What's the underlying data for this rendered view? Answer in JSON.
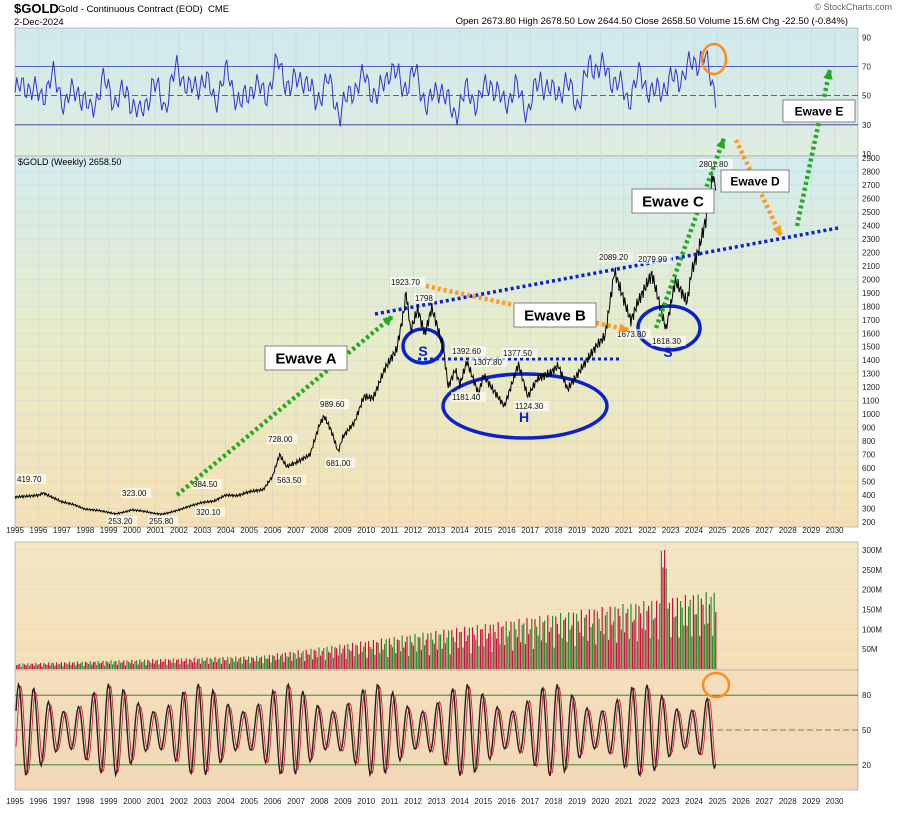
{
  "header": {
    "symbol": "$GOLD",
    "name": "Gold - Continuous Contract (EOD)",
    "exchange": "CME",
    "date": "2-Dec-2024",
    "quote": "Open 2673.80  High 2678.50  Low 2644.50  Close 2658.50  Volume 15.6M  Chg -22.50 (-0.84%)",
    "brand": "© StockCharts.com"
  },
  "colors": {
    "price_line": "#000000",
    "rsi_line": "#3333cc",
    "volume_up": "#2e8b2e",
    "volume_down": "#cc1144",
    "trend_blue": "#0a22cc",
    "arrow_green": "#22aa22",
    "arrow_orange": "#ff9922",
    "highlight_ring": "#ff8c1a"
  },
  "chart_data": [
    {
      "type": "line",
      "panel": "rsi",
      "ylim": [
        10,
        95
      ],
      "yticks": [
        "90",
        "70",
        "50",
        "30",
        "10"
      ],
      "reference_lines": [
        70,
        50,
        30
      ],
      "series": [
        {
          "values": [
            52,
            58,
            48,
            63,
            45,
            55,
            38,
            60,
            47,
            52,
            35,
            58,
            44,
            70,
            52,
            62,
            48,
            66,
            42,
            58,
            50,
            72,
            55,
            64,
            46,
            60,
            38,
            55,
            62,
            48,
            70,
            56,
            65,
            42,
            58,
            36,
            52,
            46,
            60,
            44,
            55,
            40,
            62,
            50,
            58,
            45,
            72,
            68,
            60,
            48,
            64,
            50,
            58,
            62,
            70,
            78,
            52
          ]
        }
      ]
    },
    {
      "type": "line",
      "panel": "price",
      "title": "$GOLD (Weekly) 2658.50",
      "ylim": [
        200,
        2900
      ],
      "yticks": [
        "2900",
        "2800",
        "2700",
        "2600",
        "2500",
        "2400",
        "2300",
        "2200",
        "2100",
        "2000",
        "1900",
        "1800",
        "1700",
        "1600",
        "1500",
        "1400",
        "1300",
        "1200",
        "1100",
        "1000",
        "900",
        "800",
        "700",
        "600",
        "500",
        "400",
        "300",
        "200"
      ],
      "x_range": [
        1995,
        2031
      ],
      "x_ticks": [
        "1995",
        "1996",
        "1997",
        "1998",
        "1999",
        "2000",
        "2001",
        "2002",
        "2003",
        "2004",
        "2005",
        "2006",
        "2007",
        "2008",
        "2009",
        "2010",
        "2011",
        "2012",
        "2013",
        "2014",
        "2015",
        "2016",
        "2017",
        "2018",
        "2019",
        "2020",
        "2021",
        "2022",
        "2023",
        "2024",
        "2025",
        "2026",
        "2027",
        "2028",
        "2029",
        "2030"
      ],
      "points": [
        [
          1995.0,
          385
        ],
        [
          1996.0,
          398
        ],
        [
          1996.2,
          415
        ],
        [
          1997.0,
          350
        ],
        [
          1997.5,
          330
        ],
        [
          1998.0,
          295
        ],
        [
          1998.6,
          285
        ],
        [
          1999.3,
          260
        ],
        [
          1999.7,
          275
        ],
        [
          2000.0,
          290
        ],
        [
          2000.5,
          280
        ],
        [
          2001.0,
          262
        ],
        [
          2001.3,
          258
        ],
        [
          2001.6,
          270
        ],
        [
          2002.0,
          290
        ],
        [
          2002.5,
          320
        ],
        [
          2003.0,
          345
        ],
        [
          2003.5,
          355
        ],
        [
          2004.0,
          400
        ],
        [
          2004.5,
          395
        ],
        [
          2005.0,
          425
        ],
        [
          2005.6,
          440
        ],
        [
          2006.0,
          540
        ],
        [
          2006.3,
          700
        ],
        [
          2006.6,
          610
        ],
        [
          2007.0,
          640
        ],
        [
          2007.6,
          700
        ],
        [
          2008.0,
          920
        ],
        [
          2008.2,
          985
        ],
        [
          2008.5,
          880
        ],
        [
          2008.8,
          720
        ],
        [
          2009.0,
          830
        ],
        [
          2009.5,
          940
        ],
        [
          2009.9,
          1130
        ],
        [
          2010.3,
          1120
        ],
        [
          2010.8,
          1340
        ],
        [
          2011.3,
          1480
        ],
        [
          2011.6,
          1760
        ],
        [
          2011.7,
          1900
        ],
        [
          2011.9,
          1620
        ],
        [
          2012.2,
          1780
        ],
        [
          2012.5,
          1590
        ],
        [
          2012.8,
          1790
        ],
        [
          2013.0,
          1670
        ],
        [
          2013.3,
          1480
        ],
        [
          2013.5,
          1200
        ],
        [
          2013.8,
          1330
        ],
        [
          2014.0,
          1220
        ],
        [
          2014.3,
          1390
        ],
        [
          2014.8,
          1150
        ],
        [
          2015.0,
          1290
        ],
        [
          2015.5,
          1160
        ],
        [
          2015.9,
          1060
        ],
        [
          2016.5,
          1370
        ],
        [
          2016.9,
          1130
        ],
        [
          2017.3,
          1260
        ],
        [
          2017.9,
          1310
        ],
        [
          2018.2,
          1360
        ],
        [
          2018.6,
          1185
        ],
        [
          2019.0,
          1290
        ],
        [
          2019.5,
          1420
        ],
        [
          2019.8,
          1500
        ],
        [
          2020.2,
          1580
        ],
        [
          2020.6,
          2060
        ],
        [
          2021.0,
          1850
        ],
        [
          2021.3,
          1690
        ],
        [
          2021.6,
          1830
        ],
        [
          2022.2,
          2040
        ],
        [
          2022.8,
          1630
        ],
        [
          2023.2,
          1990
        ],
        [
          2023.7,
          1830
        ],
        [
          2023.9,
          2060
        ],
        [
          2024.2,
          2220
        ],
        [
          2024.5,
          2440
        ],
        [
          2024.8,
          2780
        ],
        [
          2024.92,
          2659
        ]
      ]
    },
    {
      "type": "bar",
      "panel": "volume",
      "ylim": [
        0,
        310
      ],
      "yticks": [
        "300M",
        "250M",
        "200M",
        "150M",
        "100M",
        "50M"
      ]
    },
    {
      "type": "line",
      "panel": "oscillator",
      "ylim": [
        0,
        100
      ],
      "yticks": [
        "80",
        "50",
        "20"
      ],
      "reference_lines": [
        80,
        50,
        20
      ]
    }
  ],
  "annotations": {
    "price_labels": [
      "419.70",
      "323.00",
      "253.20",
      "255.80",
      "320.10",
      "384.50",
      "563.50",
      "728.00",
      "681.00",
      "989.60",
      "1923.70",
      "1798",
      "1392.60",
      "1307.80",
      "1377.50",
      "1181.40",
      "1124.30",
      "2089.20",
      "2079.90",
      "1673.80",
      "1618.30",
      "2801.80"
    ],
    "waves": [
      "Ewave A",
      "Ewave B",
      "Ewave C",
      "Ewave D",
      "Ewave E"
    ],
    "pattern_left": "S",
    "pattern_head": "H",
    "pattern_right": "S"
  }
}
